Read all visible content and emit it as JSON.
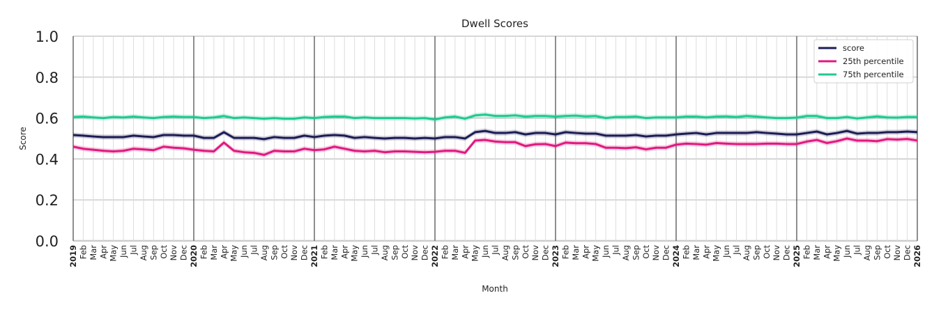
{
  "chart_data": {
    "type": "line",
    "title": "Dwell Scores",
    "xlabel": "Month",
    "ylabel": "Score",
    "ylim": [
      0,
      1.0
    ],
    "yticks": [
      "0.0",
      "0.2",
      "0.4",
      "0.6",
      "0.8",
      "1.0"
    ],
    "x_start": "2019-01",
    "x_end": "2026-01",
    "month_labels": [
      "Jan",
      "Feb",
      "Mar",
      "Apr",
      "May",
      "Jun",
      "Jul",
      "Aug",
      "Sep",
      "Oct",
      "Nov",
      "Dec"
    ],
    "grid": true,
    "legend_position": "top-right",
    "series": [
      {
        "name": "score",
        "color": "#1c1c54",
        "values": [
          0.517,
          0.514,
          0.51,
          0.507,
          0.507,
          0.507,
          0.514,
          0.51,
          0.507,
          0.517,
          0.517,
          0.514,
          0.514,
          0.503,
          0.503,
          0.531,
          0.503,
          0.503,
          0.503,
          0.497,
          0.507,
          0.503,
          0.503,
          0.514,
          0.507,
          0.514,
          0.517,
          0.514,
          0.503,
          0.507,
          0.503,
          0.5,
          0.503,
          0.503,
          0.5,
          0.503,
          0.5,
          0.507,
          0.507,
          0.5,
          0.531,
          0.537,
          0.527,
          0.527,
          0.531,
          0.52,
          0.527,
          0.527,
          0.52,
          0.531,
          0.527,
          0.524,
          0.524,
          0.514,
          0.514,
          0.514,
          0.517,
          0.51,
          0.514,
          0.514,
          0.52,
          0.524,
          0.527,
          0.52,
          0.527,
          0.527,
          0.527,
          0.527,
          0.531,
          0.527,
          0.524,
          0.52,
          0.52,
          0.527,
          0.534,
          0.52,
          0.527,
          0.537,
          0.524,
          0.527,
          0.527,
          0.531,
          0.531,
          0.534,
          0.531
        ]
      },
      {
        "name": "25th percentile",
        "color": "#e0197e",
        "values": [
          0.46,
          0.45,
          0.445,
          0.44,
          0.437,
          0.44,
          0.45,
          0.447,
          0.443,
          0.46,
          0.455,
          0.452,
          0.445,
          0.44,
          0.437,
          0.48,
          0.44,
          0.433,
          0.43,
          0.42,
          0.44,
          0.437,
          0.437,
          0.45,
          0.443,
          0.447,
          0.46,
          0.45,
          0.44,
          0.437,
          0.44,
          0.433,
          0.437,
          0.437,
          0.435,
          0.433,
          0.435,
          0.44,
          0.44,
          0.43,
          0.49,
          0.493,
          0.485,
          0.482,
          0.482,
          0.463,
          0.472,
          0.473,
          0.463,
          0.48,
          0.477,
          0.477,
          0.473,
          0.455,
          0.455,
          0.453,
          0.457,
          0.447,
          0.455,
          0.455,
          0.47,
          0.475,
          0.473,
          0.47,
          0.478,
          0.475,
          0.473,
          0.473,
          0.473,
          0.475,
          0.475,
          0.473,
          0.473,
          0.485,
          0.493,
          0.478,
          0.487,
          0.5,
          0.49,
          0.49,
          0.487,
          0.497,
          0.495,
          0.498,
          0.49
        ]
      },
      {
        "name": "75th percentile",
        "color": "#1fc98f",
        "values": [
          0.605,
          0.607,
          0.603,
          0.6,
          0.605,
          0.603,
          0.607,
          0.603,
          0.6,
          0.605,
          0.607,
          0.605,
          0.605,
          0.6,
          0.603,
          0.61,
          0.6,
          0.603,
          0.6,
          0.597,
          0.6,
          0.597,
          0.597,
          0.603,
          0.6,
          0.605,
          0.607,
          0.607,
          0.6,
          0.603,
          0.6,
          0.6,
          0.6,
          0.6,
          0.598,
          0.6,
          0.593,
          0.603,
          0.607,
          0.597,
          0.613,
          0.617,
          0.61,
          0.61,
          0.613,
          0.607,
          0.61,
          0.61,
          0.607,
          0.61,
          0.612,
          0.608,
          0.61,
          0.6,
          0.605,
          0.605,
          0.607,
          0.6,
          0.603,
          0.603,
          0.603,
          0.607,
          0.607,
          0.603,
          0.607,
          0.608,
          0.605,
          0.61,
          0.607,
          0.603,
          0.6,
          0.6,
          0.602,
          0.61,
          0.61,
          0.6,
          0.6,
          0.605,
          0.598,
          0.603,
          0.608,
          0.603,
          0.602,
          0.605,
          0.605
        ]
      }
    ]
  }
}
